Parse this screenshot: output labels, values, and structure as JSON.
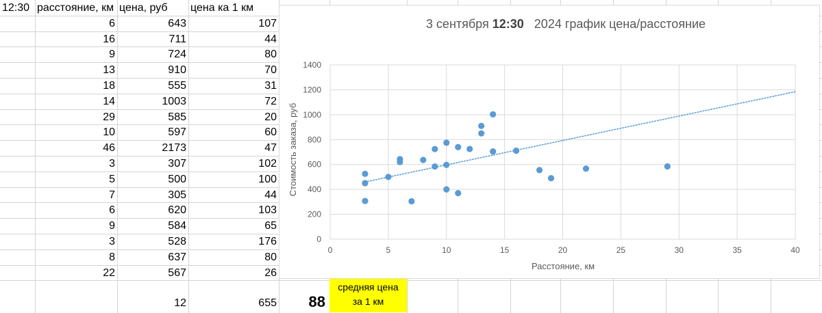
{
  "sheet": {
    "headers": {
      "time": "12:30",
      "distance": "расстояние, км",
      "price": "цена, руб",
      "price_per_km": "цена ка 1 км"
    },
    "rows": [
      {
        "distance": "6",
        "price": "643",
        "per_km": "107"
      },
      {
        "distance": "16",
        "price": "711",
        "per_km": "44"
      },
      {
        "distance": "9",
        "price": "724",
        "per_km": "80"
      },
      {
        "distance": "13",
        "price": "910",
        "per_km": "70"
      },
      {
        "distance": "18",
        "price": "555",
        "per_km": "31"
      },
      {
        "distance": "14",
        "price": "1003",
        "per_km": "72"
      },
      {
        "distance": "29",
        "price": "585",
        "per_km": "20"
      },
      {
        "distance": "10",
        "price": "597",
        "per_km": "60"
      },
      {
        "distance": "46",
        "price": "2173",
        "per_km": "47"
      },
      {
        "distance": "3",
        "price": "307",
        "per_km": "102"
      },
      {
        "distance": "5",
        "price": "500",
        "per_km": "100"
      },
      {
        "distance": "7",
        "price": "305",
        "per_km": "44"
      },
      {
        "distance": "6",
        "price": "620",
        "per_km": "103"
      },
      {
        "distance": "9",
        "price": "584",
        "per_km": "65"
      },
      {
        "distance": "3",
        "price": "528",
        "per_km": "176"
      },
      {
        "distance": "8",
        "price": "637",
        "per_km": "80"
      },
      {
        "distance": "22",
        "price": "567",
        "per_km": "26"
      }
    ],
    "summary": {
      "distance": "12",
      "price": "655",
      "avg_value": "88",
      "avg_label_line1": "средняя цена",
      "avg_label_line2": "за 1 км"
    },
    "gridline_color": "#d4d4d4",
    "highlight_color": "#ffff00"
  },
  "chart_data": {
    "type": "scatter",
    "title_prefix": "3 сентября ",
    "title_bold": "12:30",
    "title_suffix": "   2024 график цена/расстояние",
    "xlabel": "Расстояние, км",
    "ylabel": "Стоимость заказа, руб",
    "xlim": [
      0,
      40
    ],
    "ylim": [
      0,
      1400
    ],
    "x_ticks": [
      0,
      5,
      10,
      15,
      20,
      25,
      30,
      35,
      40
    ],
    "y_ticks": [
      0,
      200,
      400,
      600,
      800,
      1000,
      1200,
      1400
    ],
    "grid": true,
    "point_color": "#5b9bd5",
    "trendline": {
      "type": "linear",
      "style": "dotted",
      "x": [
        3,
        40
      ],
      "y": [
        460,
        1185
      ]
    },
    "points": [
      {
        "x": 3,
        "y": 525
      },
      {
        "x": 3,
        "y": 450
      },
      {
        "x": 3,
        "y": 307
      },
      {
        "x": 5,
        "y": 500
      },
      {
        "x": 6,
        "y": 643
      },
      {
        "x": 6,
        "y": 620
      },
      {
        "x": 7,
        "y": 305
      },
      {
        "x": 8,
        "y": 637
      },
      {
        "x": 9,
        "y": 724
      },
      {
        "x": 9,
        "y": 584
      },
      {
        "x": 10,
        "y": 775
      },
      {
        "x": 10,
        "y": 597
      },
      {
        "x": 10,
        "y": 400
      },
      {
        "x": 11,
        "y": 740
      },
      {
        "x": 11,
        "y": 370
      },
      {
        "x": 12,
        "y": 725
      },
      {
        "x": 13,
        "y": 910
      },
      {
        "x": 13,
        "y": 850
      },
      {
        "x": 14,
        "y": 1003
      },
      {
        "x": 14,
        "y": 705
      },
      {
        "x": 16,
        "y": 711
      },
      {
        "x": 18,
        "y": 555
      },
      {
        "x": 19,
        "y": 490
      },
      {
        "x": 22,
        "y": 567
      },
      {
        "x": 29,
        "y": 585
      }
    ]
  }
}
